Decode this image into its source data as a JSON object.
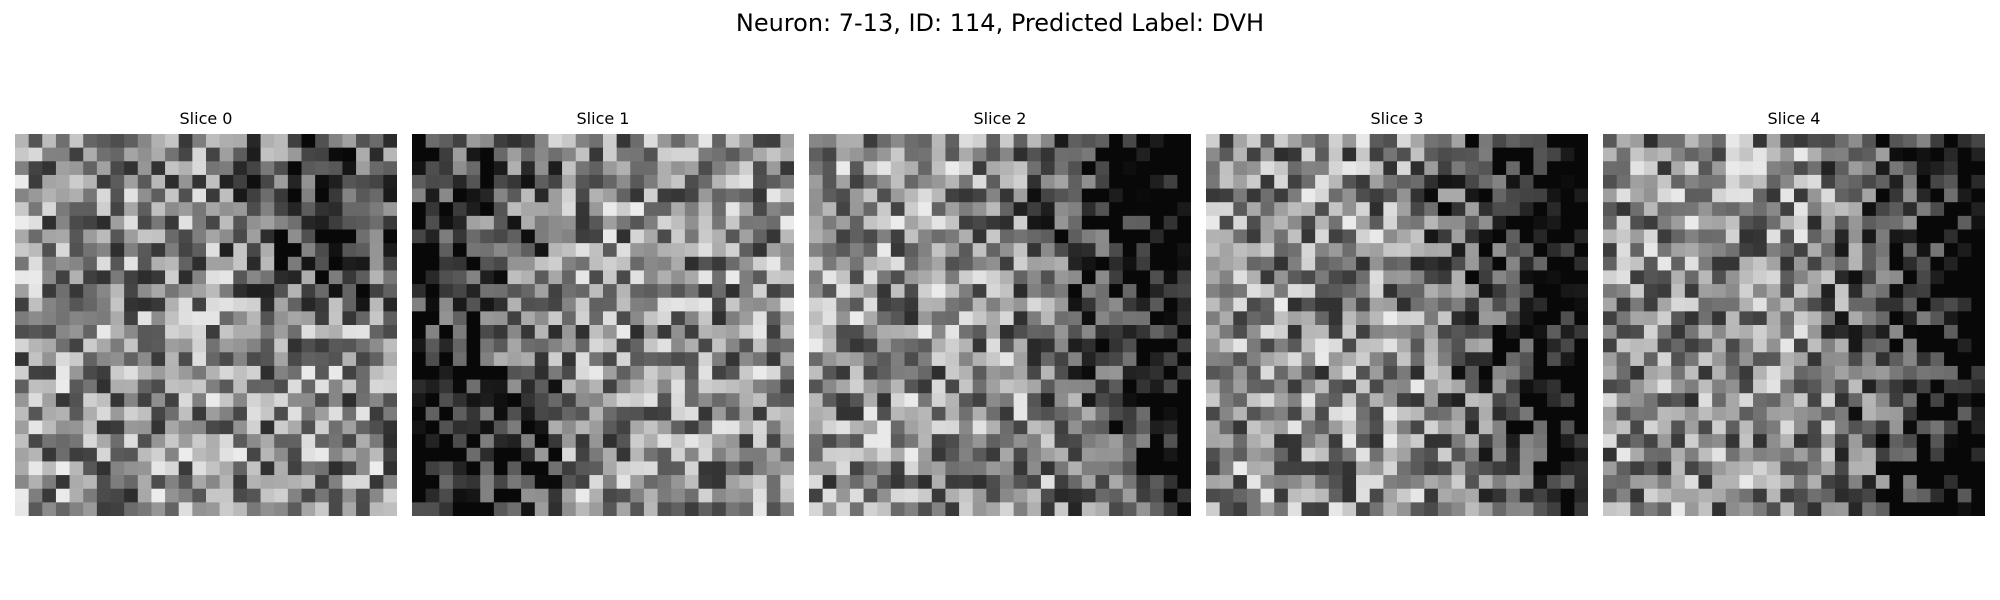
{
  "figure": {
    "title": "Neuron: 7-13, ID: 114, Predicted Label: DVH"
  },
  "panels": [
    {
      "title": "Slice 0",
      "image": "grayscale-noise-patch",
      "dark_region": "upper-right"
    },
    {
      "title": "Slice 1",
      "image": "grayscale-noise-patch",
      "dark_region": "left"
    },
    {
      "title": "Slice 2",
      "image": "grayscale-noise-patch",
      "dark_region": "right-band"
    },
    {
      "title": "Slice 3",
      "image": "grayscale-noise-patch",
      "dark_region": "right-band"
    },
    {
      "title": "Slice 4",
      "image": "grayscale-noise-patch",
      "dark_region": "right"
    }
  ]
}
